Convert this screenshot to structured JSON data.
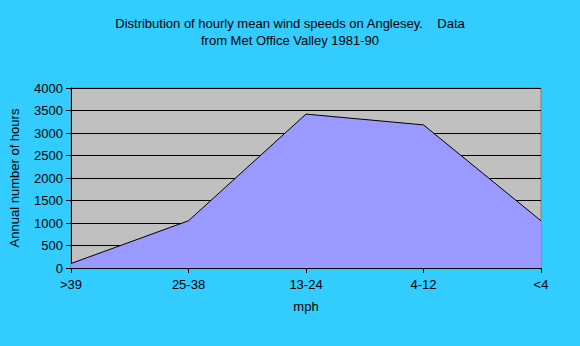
{
  "chart_data": {
    "type": "area",
    "title": "Distribution of hourly mean wind speeds on Anglesey.    Data\nfrom Met Office Valley 1981-90",
    "x_label": "mph",
    "y_label": "Annual number of hours",
    "categories": [
      ">39",
      "25-38",
      "13-24",
      "4-12",
      "<4"
    ],
    "values": [
      100,
      1050,
      3420,
      3180,
      1050
    ],
    "color": "#9999ff",
    "ylim": [
      0,
      4000
    ],
    "yticks": [
      0,
      500,
      1000,
      1500,
      2000,
      2500,
      3000,
      3500,
      4000
    ],
    "grid": true
  }
}
